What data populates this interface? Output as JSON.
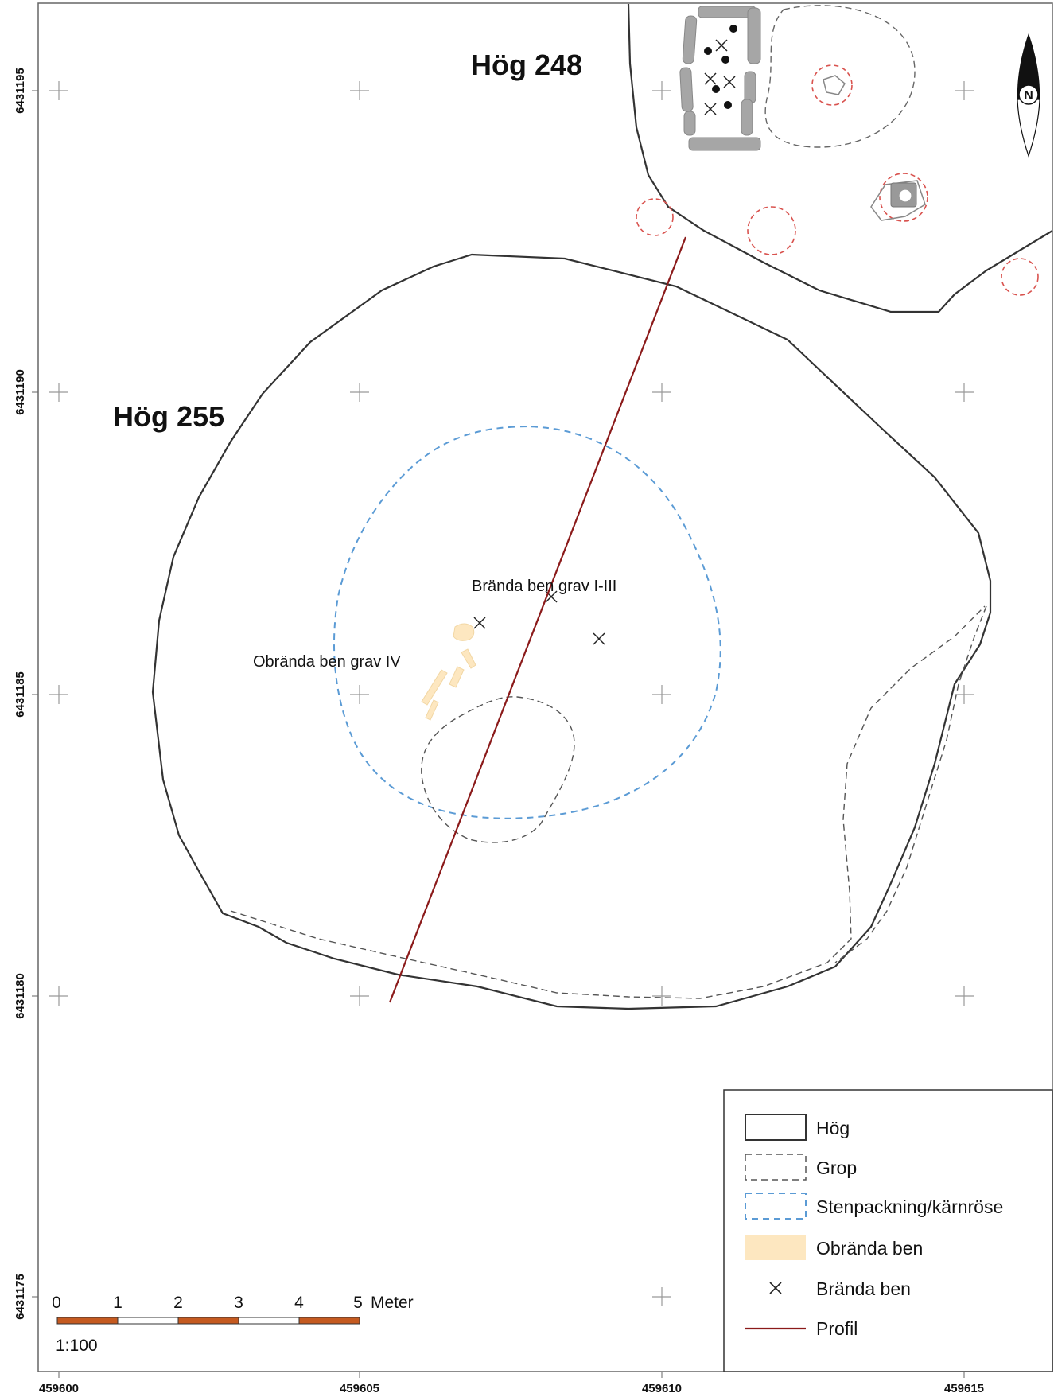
{
  "map": {
    "mounds": {
      "hog_248": "Hög 248",
      "hog_255": "Hög 255"
    },
    "annotations": {
      "burned_bones": "Brända ben grav I-III",
      "unburned_bones": "Obrända ben grav IV"
    },
    "axes": {
      "x_ticks": [
        "459600",
        "459605",
        "459610",
        "459615"
      ],
      "y_ticks": [
        "6431195",
        "6431190",
        "6431185",
        "6431180",
        "6431175"
      ]
    },
    "north_arrow": {
      "letter": "N",
      "icon": "north-arrow-icon"
    },
    "scale": {
      "ticks": [
        "0",
        "1",
        "2",
        "3",
        "4",
        "5"
      ],
      "unit": "Meter",
      "ratio": "1:100",
      "bar_colors": [
        "#c55a20",
        "#ffffff"
      ]
    },
    "legend": {
      "items": [
        {
          "label": "Hög",
          "symbol": "solid-box"
        },
        {
          "label": "Grop",
          "symbol": "dashed-gray-box"
        },
        {
          "label": "Stenpackning/kärnröse",
          "symbol": "dashed-blue-box"
        },
        {
          "label": "Obrända ben",
          "symbol": "filled-beige-box"
        },
        {
          "label": "Brända ben",
          "symbol": "cross"
        },
        {
          "label": "Profil",
          "symbol": "red-line"
        }
      ]
    },
    "colors": {
      "mound": "#333333",
      "pit": "#555555",
      "stone_packing": "#5b9bd5",
      "unburned_bones": "#fde7c0",
      "profile": "#8b1a1a",
      "post_hole": "#d9534f",
      "stone": "#a6a6a6"
    }
  }
}
